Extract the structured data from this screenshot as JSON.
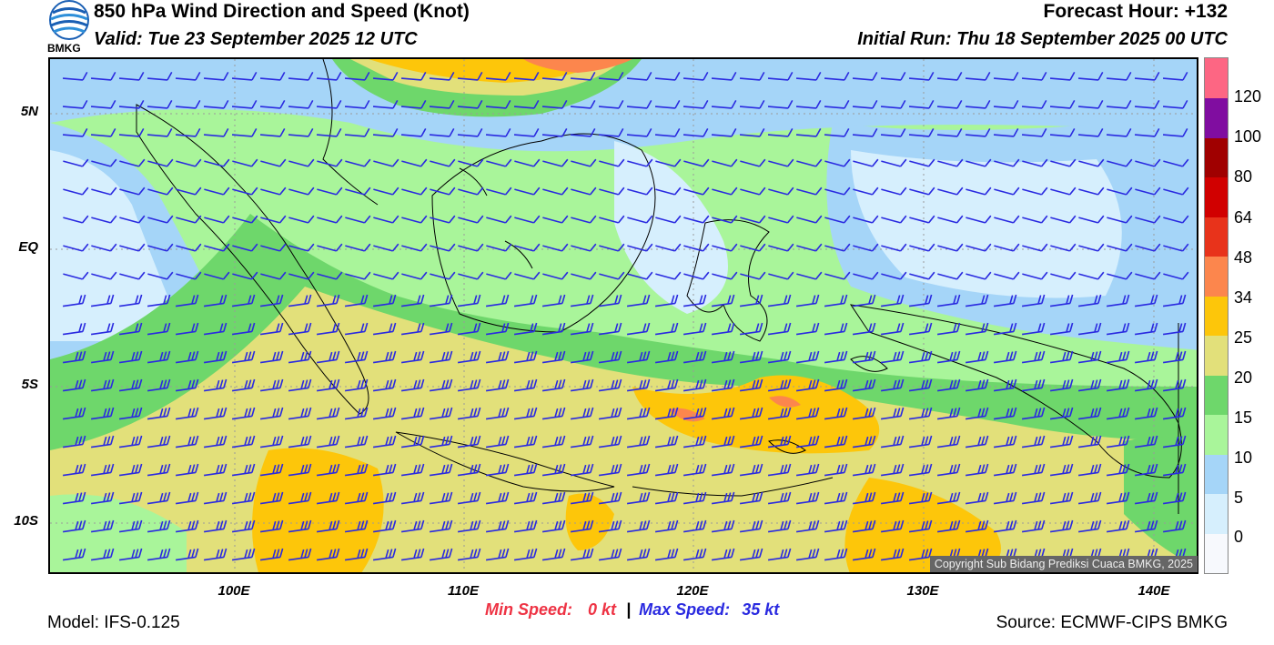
{
  "header": {
    "title": "850 hPa Wind Direction and Speed (Knot)",
    "valid": "Valid: Tue 23 September 2025 12 UTC",
    "forecast_hour": "Forecast Hour: +132",
    "initial_run": "Initial Run: Thu 18 September 2025 00 UTC"
  },
  "logo": {
    "text": "BMKG",
    "icon": "bmkg-logo-icon"
  },
  "map": {
    "lat_labels": [
      "5N",
      "EQ",
      "5S",
      "10S"
    ],
    "lon_labels": [
      "100E",
      "110E",
      "120E",
      "130E",
      "140E"
    ],
    "barb_color": "#2a2ae0",
    "coast_color": "#000000"
  },
  "footer": {
    "model": "Model: IFS-0.125",
    "source": "Source: ECMWF-CIPS BMKG",
    "min_label": "Min Speed:",
    "min_value": "0 kt",
    "separator": "|",
    "max_label": "Max Speed:",
    "max_value": "35 kt",
    "copyright": "Copyright Sub Bidang Prediksi Cuaca BMKG, 2025"
  },
  "colorbar": {
    "labels": [
      "120",
      "100",
      "80",
      "64",
      "48",
      "34",
      "25",
      "20",
      "15",
      "10",
      "5",
      "0"
    ],
    "colors": [
      "#f7f9fd",
      "#d6effd",
      "#a5d5f8",
      "#a9f59a",
      "#6ed76b",
      "#e2e07a",
      "#fdc60a",
      "#fc864d",
      "#e8331b",
      "#d10000",
      "#a00000",
      "#800da0",
      "#fd6683"
    ]
  }
}
